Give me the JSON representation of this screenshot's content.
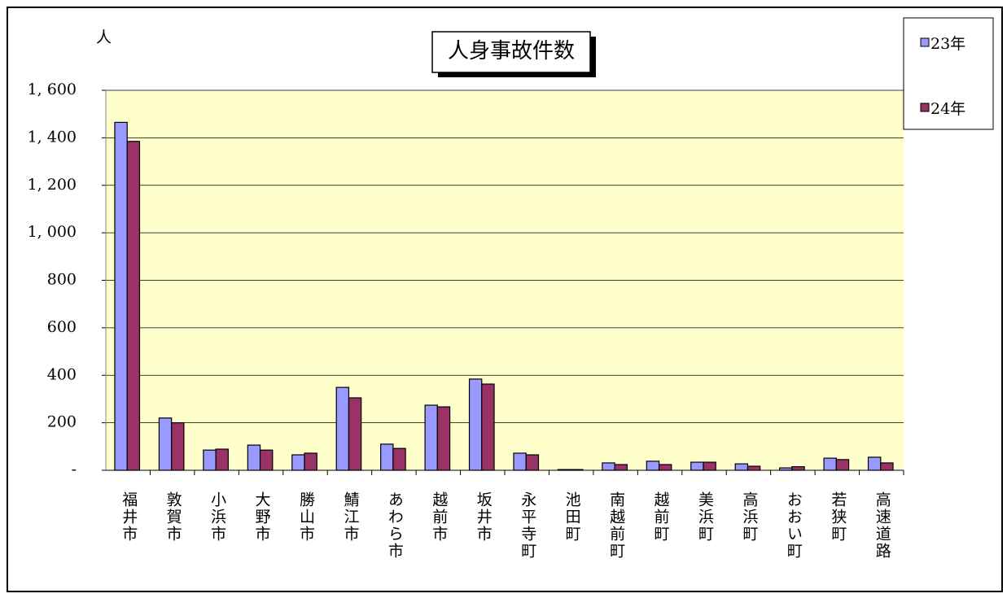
{
  "chart_data": {
    "type": "bar",
    "title": "人身事故件数",
    "y_label": "人",
    "categories": [
      "福井市",
      "敦賀市",
      "小浜市",
      "大野市",
      "勝山市",
      "鯖江市",
      "あわら市",
      "越前市",
      "坂井市",
      "永平寺町",
      "池田町",
      "南越前町",
      "越前町",
      "美浜町",
      "高浜町",
      "おおい町",
      "若狭町",
      "高速道路"
    ],
    "series": [
      {
        "name": "23年",
        "color": "#9999ff",
        "values": [
          1465,
          220,
          85,
          106,
          65,
          349,
          110,
          274,
          384,
          72,
          3,
          31,
          38,
          34,
          27,
          10,
          51,
          55
        ]
      },
      {
        "name": "24年",
        "color": "#993366",
        "values": [
          1385,
          200,
          89,
          85,
          72,
          305,
          92,
          267,
          363,
          65,
          3,
          24,
          24,
          34,
          17,
          15,
          45,
          31
        ]
      }
    ],
    "ylim": [
      0,
      1600
    ],
    "yticks": [
      {
        "value": 0,
        "label": "-"
      },
      200,
      400,
      600,
      800,
      {
        "value": 1000,
        "label": "1, 000"
      },
      {
        "value": 1200,
        "label": "1, 200"
      },
      {
        "value": 1400,
        "label": "1, 400"
      },
      {
        "value": 1600,
        "label": "1, 600"
      }
    ],
    "grid": true,
    "legend": "right"
  }
}
